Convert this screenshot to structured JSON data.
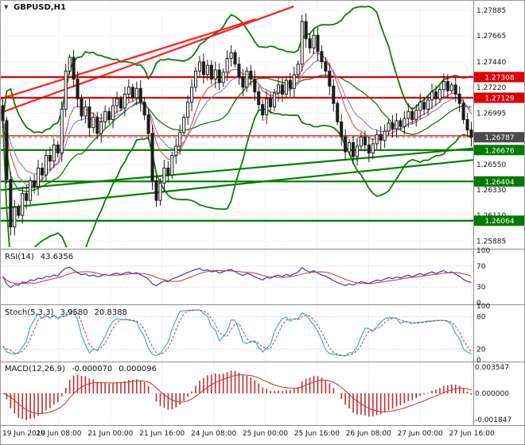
{
  "window": {
    "title": "GBPUSD,H1"
  },
  "colors": {
    "background": "#ffffff",
    "grid": "#dcdcdc",
    "separator": "#8c8c8c",
    "candle": "#1c1c1c",
    "candle_bull_fill": "#ffffff",
    "bollinger": "#107a10",
    "support": "#007a00",
    "resistance": "#dd0000",
    "trend_red": "#ff2020",
    "trend_green": "#008000",
    "minor_red": "#dd2222",
    "bid_line": "#777777",
    "ema_fast": "#d94f4f",
    "ema_slow": "#8580c0",
    "rsi_line": "#3a3ab8",
    "rsi_signal": "#cc3333",
    "stoch_k": "#3bb3c9",
    "stoch_d": "#cc3344",
    "macd": "#c03030",
    "axis_text": "#111111",
    "badge_resistance": "#dd0000",
    "badge_support": "#007a00",
    "badge_price": "#4a4a4a"
  },
  "price_axis": {
    "labels": [
      {
        "price": 1.27885,
        "label": "1.27885"
      },
      {
        "price": 1.27665,
        "label": "1.27665"
      },
      {
        "price": 1.2744,
        "label": "1.27440"
      },
      {
        "price": 1.2722,
        "label": "1.27220"
      },
      {
        "price": 1.26995,
        "label": "1.26995"
      },
      {
        "price": 1.2655,
        "label": "1.26550"
      },
      {
        "price": 1.2633,
        "label": "1.26330"
      },
      {
        "price": 1.2611,
        "label": "1.26110"
      },
      {
        "price": 1.25885,
        "label": "1.25885"
      }
    ],
    "badges": [
      {
        "price": 1.27308,
        "label": "1.27308",
        "type": "resistance"
      },
      {
        "price": 1.27129,
        "label": "1.27129",
        "type": "resistance"
      },
      {
        "price": 1.26787,
        "label": "1.26787",
        "type": "current"
      },
      {
        "price": 1.26676,
        "label": "1.26676",
        "type": "support"
      },
      {
        "price": 1.26404,
        "label": "1.26404",
        "type": "support"
      },
      {
        "price": 1.26064,
        "label": "1.26064",
        "type": "support"
      }
    ]
  },
  "time_axis": {
    "labels": [
      "19 Jun 2019",
      "20 Jun 08:00",
      "21 Jun 00:00",
      "21 Jun 16:00",
      "24 Jun 08:00",
      "25 Jun 00:00",
      "25 Jun 16:00",
      "26 Jun 08:00",
      "27 Jun 00:00",
      "27 Jun 16:00"
    ]
  },
  "indicators": {
    "rsi": {
      "title": "RSI(14)",
      "value": "43.6356",
      "period": 14,
      "signal_period": 8,
      "levels": [
        70,
        30
      ],
      "scale": [
        {
          "v": 100,
          "label": "100"
        },
        {
          "v": 70,
          "label": "70"
        },
        {
          "v": 30,
          "label": "30"
        },
        {
          "v": 0,
          "label": "0"
        }
      ]
    },
    "stoch": {
      "title": "Stoch(5,3,3)",
      "value_k": "3.9580",
      "value_d": "20.8388",
      "k_period": 5,
      "k_slowing": 3,
      "d_period": 3,
      "levels": [
        80,
        20
      ],
      "scale": [
        {
          "v": 100,
          "label": "100"
        },
        {
          "v": 80,
          "label": "80"
        },
        {
          "v": 20,
          "label": "20"
        },
        {
          "v": 0,
          "label": "0"
        }
      ]
    },
    "macd": {
      "title": "MACD(12,26,9)",
      "value_main": "-0.000070",
      "value_signal": "0.000096",
      "fast": 12,
      "slow": 26,
      "signal": 9,
      "scale_labels": [
        "0.003547",
        "0.000000",
        "-0.001847"
      ]
    }
  },
  "chart_data": {
    "type": "candlestick",
    "symbol": "GBPUSD",
    "timeframe": "H1",
    "title": "GBPUSD,H1",
    "x_labels": [
      "19 Jun 2019",
      "20 Jun 08:00",
      "21 Jun 00:00",
      "21 Jun 16:00",
      "24 Jun 08:00",
      "25 Jun 00:00",
      "25 Jun 16:00",
      "26 Jun 08:00",
      "27 Jun 00:00",
      "27 Jun 16:00"
    ],
    "price_range": {
      "min": 1.25835,
      "max": 1.27955
    },
    "first_open": 1.2706,
    "closes": [
      1.2693,
      1.2642,
      1.2601,
      1.2618,
      1.2611,
      1.263,
      1.2624,
      1.2641,
      1.2636,
      1.2652,
      1.2646,
      1.2663,
      1.2658,
      1.2672,
      1.2665,
      1.2703,
      1.2736,
      1.2748,
      1.2729,
      1.2712,
      1.2697,
      1.2705,
      1.2687,
      1.2696,
      1.2682,
      1.2692,
      1.2701,
      1.2694,
      1.2706,
      1.2712,
      1.2704,
      1.2716,
      1.2722,
      1.2713,
      1.2721,
      1.2709,
      1.2698,
      1.2682,
      1.2641,
      1.2624,
      1.2639,
      1.2652,
      1.2646,
      1.2663,
      1.2671,
      1.2683,
      1.2696,
      1.2709,
      1.2722,
      1.2736,
      1.2744,
      1.2733,
      1.2741,
      1.2729,
      1.2737,
      1.2726,
      1.2735,
      1.2747,
      1.2752,
      1.2742,
      1.2731,
      1.2722,
      1.2736,
      1.2729,
      1.2718,
      1.2707,
      1.2698,
      1.2712,
      1.2705,
      1.2717,
      1.2724,
      1.2716,
      1.2728,
      1.2721,
      1.2733,
      1.2742,
      1.2779,
      1.2764,
      1.2756,
      1.2767,
      1.2753,
      1.2744,
      1.2736,
      1.2723,
      1.2708,
      1.2692,
      1.2679,
      1.2666,
      1.2674,
      1.2662,
      1.2671,
      1.2679,
      1.2672,
      1.2665,
      1.2673,
      1.2681,
      1.2676,
      1.2684,
      1.2691,
      1.2686,
      1.2693,
      1.2688,
      1.2695,
      1.2701,
      1.2694,
      1.2702,
      1.2709,
      1.2703,
      1.2711,
      1.2718,
      1.2712,
      1.272,
      1.2727,
      1.2719,
      1.2724,
      1.2716,
      1.2708,
      1.2694,
      1.2685,
      1.26787
    ],
    "bollinger": {
      "period": 20,
      "deviation": 2
    },
    "moving_averages": [
      {
        "period": 8,
        "color_key": "ema_fast"
      },
      {
        "period": 13,
        "color_key": "ema_slow"
      }
    ],
    "resistance_levels": [
      1.27308,
      1.27129
    ],
    "support_levels": [
      1.26676,
      1.26404,
      1.26064
    ],
    "minor_level": 1.268,
    "current_price": 1.26787,
    "trend_lines": [
      {
        "color_key": "trend_red",
        "x1_frac": 0,
        "price1": 1.27,
        "x2_frac": 0.62,
        "price2": 1.2792
      },
      {
        "color_key": "trend_red",
        "x1_frac": 0,
        "price1": 1.2712,
        "x2_frac": 0.54,
        "price2": 1.2781
      },
      {
        "color_key": "trend_green",
        "x1_frac": 0,
        "price1": 1.2633,
        "x2_frac": 1.0,
        "price2": 1.2669
      },
      {
        "color_key": "trend_green",
        "x1_frac": 0,
        "price1": 1.2617,
        "x2_frac": 1.0,
        "price2": 1.2659
      }
    ]
  }
}
